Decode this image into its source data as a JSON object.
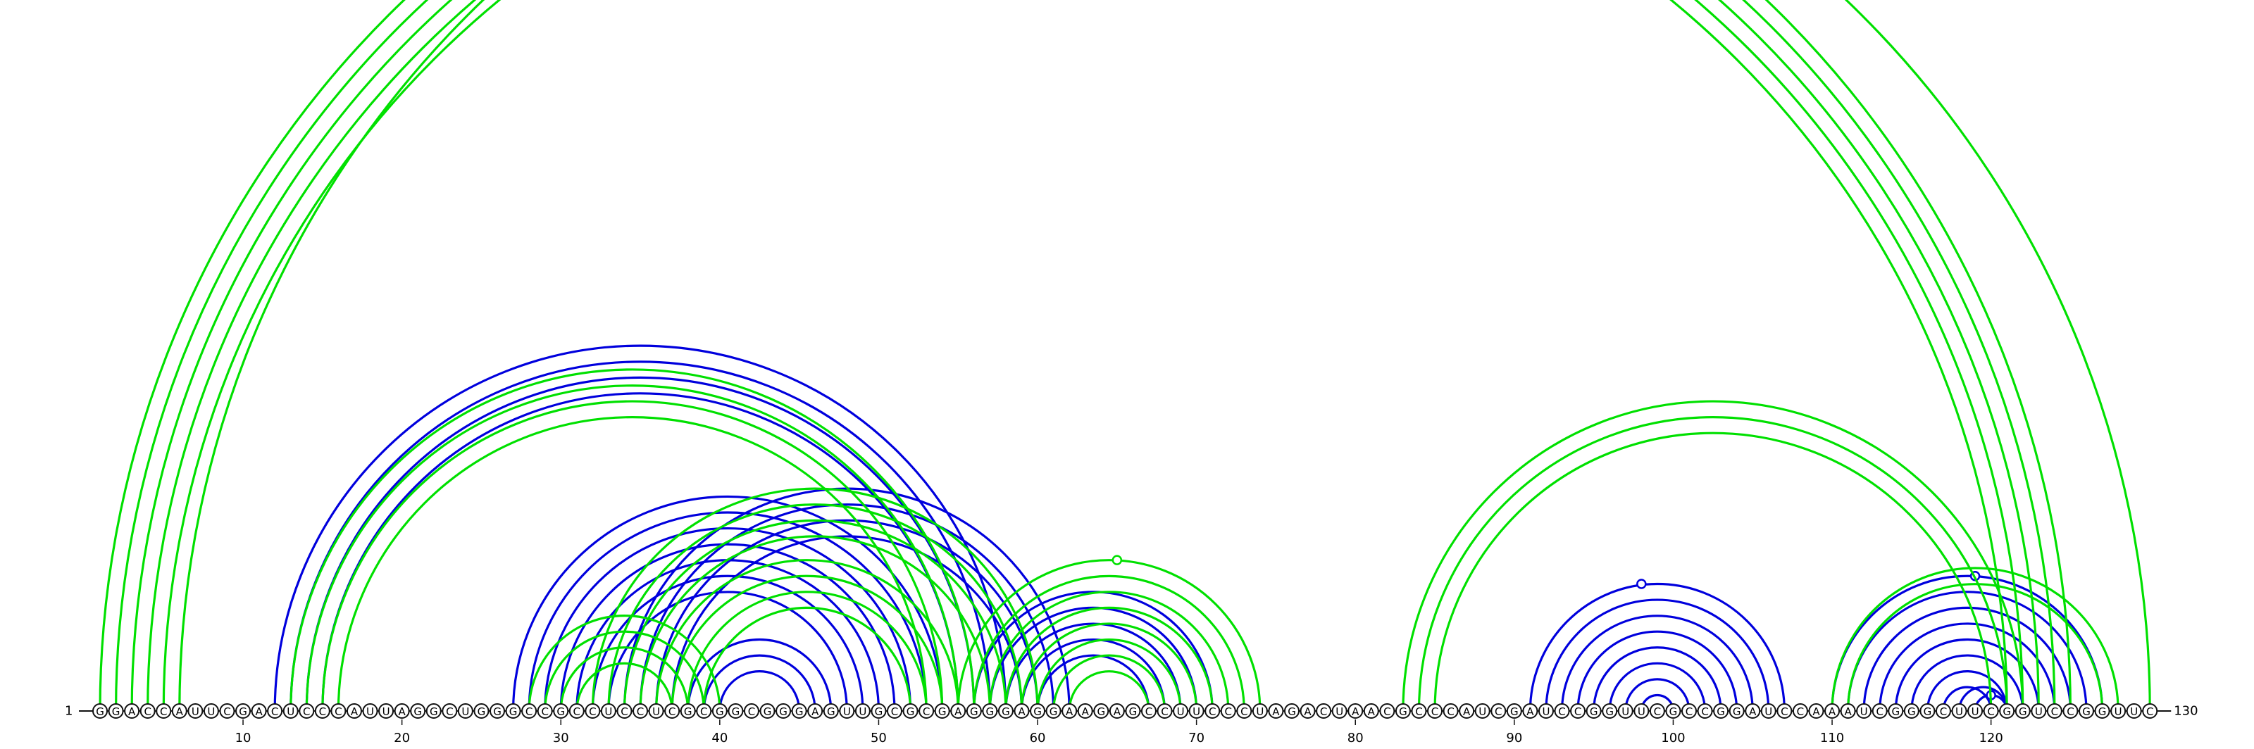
{
  "sequence": "GGACCAUUCGACUCCCAUUAGGCUGGGCCGCCUCCUCGCGGCGGGAGUUGCGCGAGGGAGGAAGAGCCUUCCCUAGACUAACGCCCAUCGAUCCGGUUCGCCGGAUCCAAAUCGGGCUUCGGUCCGGUUC",
  "start_label": "1",
  "end_label": "130",
  "ticks": [
    "10",
    "20",
    "30",
    "40",
    "50",
    "60",
    "70",
    "80",
    "90",
    "100",
    "110",
    "120"
  ],
  "colors": {
    "blue": "#0000dd",
    "green": "#00e000"
  },
  "structures": [
    {
      "color": "blue",
      "pairs": [
        [
          12,
          58
        ],
        [
          13,
          57
        ],
        [
          14,
          56
        ],
        [
          15,
          55
        ],
        [
          27,
          54
        ],
        [
          28,
          53
        ],
        [
          29,
          52
        ],
        [
          30,
          51
        ],
        [
          31,
          50
        ],
        [
          32,
          49
        ],
        [
          33,
          48
        ],
        [
          34,
          62
        ],
        [
          35,
          61
        ],
        [
          36,
          60
        ],
        [
          37,
          59
        ],
        [
          38,
          47
        ],
        [
          39,
          46
        ],
        [
          40,
          45
        ],
        [
          56,
          71
        ],
        [
          57,
          70
        ],
        [
          58,
          69
        ],
        [
          59,
          68
        ],
        [
          60,
          67
        ],
        [
          91,
          107
        ],
        [
          92,
          106
        ],
        [
          93,
          105
        ],
        [
          94,
          104
        ],
        [
          95,
          103
        ],
        [
          96,
          102
        ],
        [
          97,
          101
        ],
        [
          98,
          100
        ],
        [
          110,
          127
        ],
        [
          111,
          126
        ],
        [
          112,
          125
        ],
        [
          113,
          124
        ],
        [
          114,
          123
        ],
        [
          115,
          122
        ],
        [
          116,
          121
        ],
        [
          117,
          120
        ],
        [
          118,
          121
        ],
        [
          119,
          121
        ]
      ],
      "bulges": [
        98,
        119,
        120
      ]
    },
    {
      "color": "green",
      "pairs": [
        [
          1,
          125
        ],
        [
          2,
          124
        ],
        [
          3,
          123
        ],
        [
          4,
          122
        ],
        [
          5,
          121
        ],
        [
          6,
          130
        ],
        [
          13,
          56
        ],
        [
          14,
          55
        ],
        [
          15,
          54
        ],
        [
          16,
          53
        ],
        [
          28,
          40
        ],
        [
          29,
          39
        ],
        [
          30,
          38
        ],
        [
          31,
          37
        ],
        [
          32,
          60
        ],
        [
          33,
          59
        ],
        [
          34,
          58
        ],
        [
          35,
          57
        ],
        [
          36,
          55
        ],
        [
          37,
          54
        ],
        [
          38,
          53
        ],
        [
          39,
          52
        ],
        [
          55,
          74
        ],
        [
          56,
          73
        ],
        [
          57,
          72
        ],
        [
          58,
          71
        ],
        [
          59,
          70
        ],
        [
          60,
          69
        ],
        [
          61,
          68
        ],
        [
          62,
          67
        ],
        [
          83,
          122
        ],
        [
          84,
          121
        ],
        [
          85,
          120
        ],
        [
          110,
          128
        ],
        [
          111,
          127
        ]
      ],
      "bulges": [
        65
      ]
    }
  ]
}
